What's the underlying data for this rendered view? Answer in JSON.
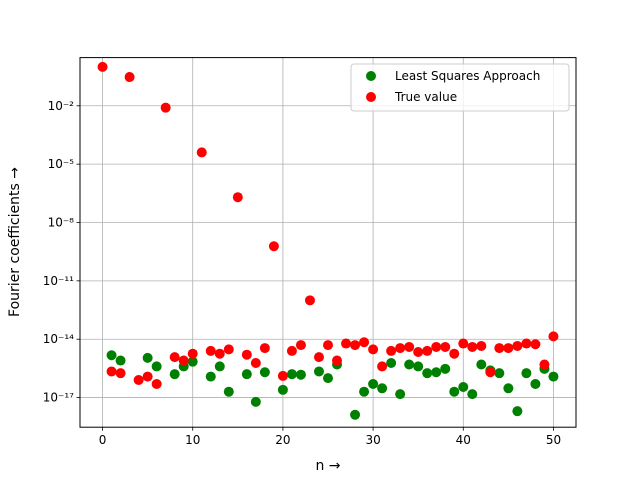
{
  "chart_data": {
    "type": "scatter",
    "xlabel": "n →",
    "ylabel": "Fourier coefficients →",
    "xlim": [
      -2.5,
      52.5
    ],
    "ylim": [
      3e-19,
      3
    ],
    "yscale": "log",
    "xticks": [
      0,
      10,
      20,
      30,
      40,
      50
    ],
    "xtick_labels": [
      "0",
      "10",
      "20",
      "30",
      "40",
      "50"
    ],
    "yticks": [
      1e-17,
      1e-14,
      1e-11,
      1e-08,
      1e-05,
      0.01
    ],
    "ytick_labels": [
      "10⁻¹⁷",
      "10⁻¹⁴",
      "10⁻¹¹",
      "10⁻⁸",
      "10⁻⁵",
      "10⁻²"
    ],
    "grid": true,
    "legend_position": "top-right",
    "series": [
      {
        "name": "Least Squares Approach",
        "color": "#008000",
        "points": [
          [
            1,
            1.5e-15
          ],
          [
            2,
            8e-16
          ],
          [
            5,
            1.1e-15
          ],
          [
            6,
            4e-16
          ],
          [
            8,
            1.6e-16
          ],
          [
            9,
            4e-16
          ],
          [
            10,
            7e-16
          ],
          [
            12,
            1.2e-16
          ],
          [
            13,
            4e-16
          ],
          [
            14,
            2e-17
          ],
          [
            16,
            1.6e-16
          ],
          [
            17,
            6e-18
          ],
          [
            18,
            2e-16
          ],
          [
            20,
            2.5e-17
          ],
          [
            21,
            1.6e-16
          ],
          [
            22,
            1.5e-16
          ],
          [
            24,
            2.2e-16
          ],
          [
            25,
            1e-16
          ],
          [
            26,
            5e-16
          ],
          [
            28,
            1.3e-18
          ],
          [
            29,
            2e-17
          ],
          [
            30,
            5e-17
          ],
          [
            31,
            3e-17
          ],
          [
            32,
            6e-16
          ],
          [
            33,
            1.5e-17
          ],
          [
            34,
            5e-16
          ],
          [
            35,
            4e-16
          ],
          [
            36,
            1.8e-16
          ],
          [
            37,
            2e-16
          ],
          [
            38,
            3e-16
          ],
          [
            39,
            2e-17
          ],
          [
            40,
            3.5e-17
          ],
          [
            41,
            1.5e-17
          ],
          [
            42,
            5e-16
          ],
          [
            43,
            2.5e-16
          ],
          [
            44,
            1.8e-16
          ],
          [
            45,
            3e-17
          ],
          [
            46,
            2e-18
          ],
          [
            47,
            1.8e-16
          ],
          [
            48,
            5e-17
          ],
          [
            49,
            3e-16
          ],
          [
            50,
            1.2e-16
          ]
        ]
      },
      {
        "name": "True value",
        "color": "#ff0000",
        "points": [
          [
            0,
            1.0
          ],
          [
            3,
            0.3
          ],
          [
            7,
            0.008
          ],
          [
            11,
            4e-05
          ],
          [
            15,
            2e-07
          ],
          [
            19,
            6e-10
          ],
          [
            23,
            1e-12
          ],
          [
            1,
            2.2e-16
          ],
          [
            2,
            1.8e-16
          ],
          [
            4,
            8e-17
          ],
          [
            5,
            1.2e-16
          ],
          [
            6,
            5e-17
          ],
          [
            8,
            1.2e-15
          ],
          [
            9,
            8e-16
          ],
          [
            10,
            1.8e-15
          ],
          [
            12,
            2.5e-15
          ],
          [
            13,
            1.8e-15
          ],
          [
            14,
            3e-15
          ],
          [
            16,
            1.6e-15
          ],
          [
            17,
            6e-16
          ],
          [
            18,
            3.5e-15
          ],
          [
            20,
            1.3e-16
          ],
          [
            21,
            2.5e-15
          ],
          [
            22,
            5e-15
          ],
          [
            24,
            1.2e-15
          ],
          [
            25,
            5e-15
          ],
          [
            26,
            8e-16
          ],
          [
            27,
            6e-15
          ],
          [
            28,
            5e-15
          ],
          [
            29,
            7e-15
          ],
          [
            30,
            3e-15
          ],
          [
            31,
            4e-16
          ],
          [
            32,
            2.5e-15
          ],
          [
            33,
            3.5e-15
          ],
          [
            34,
            4e-15
          ],
          [
            35,
            2.2e-15
          ],
          [
            36,
            2.5e-15
          ],
          [
            37,
            4e-15
          ],
          [
            38,
            4e-15
          ],
          [
            39,
            1.8e-15
          ],
          [
            40,
            6e-15
          ],
          [
            41,
            4e-15
          ],
          [
            42,
            4.5e-15
          ],
          [
            43,
            2e-16
          ],
          [
            44,
            3.5e-15
          ],
          [
            45,
            3.5e-15
          ],
          [
            46,
            4.5e-15
          ],
          [
            47,
            6e-15
          ],
          [
            48,
            5.5e-15
          ],
          [
            49,
            5e-16
          ],
          [
            50,
            1.4e-14
          ]
        ]
      }
    ]
  }
}
